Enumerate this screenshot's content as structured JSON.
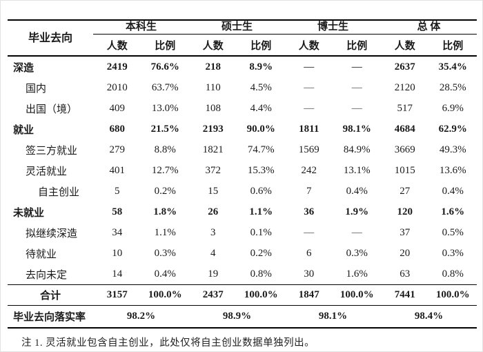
{
  "table": {
    "corner": "毕业去向",
    "groups": [
      {
        "label": "本科生"
      },
      {
        "label": "硕士生"
      },
      {
        "label": "博士生"
      },
      {
        "label": "总  体"
      }
    ],
    "sub": {
      "count": "人数",
      "ratio": "比例"
    },
    "rows": [
      {
        "label": "深造",
        "cells": [
          "2419",
          "76.6%",
          "218",
          "8.9%",
          "—",
          "—",
          "2637",
          "35.4%"
        ]
      },
      {
        "label": "国内",
        "cells": [
          "2010",
          "63.7%",
          "110",
          "4.5%",
          "—",
          "—",
          "2120",
          "28.5%"
        ]
      },
      {
        "label": "出国（境）",
        "cells": [
          "409",
          "13.0%",
          "108",
          "4.4%",
          "—",
          "—",
          "517",
          "6.9%"
        ]
      },
      {
        "label": "就业",
        "cells": [
          "680",
          "21.5%",
          "2193",
          "90.0%",
          "1811",
          "98.1%",
          "4684",
          "62.9%"
        ]
      },
      {
        "label": "签三方就业",
        "cells": [
          "279",
          "8.8%",
          "1821",
          "74.7%",
          "1569",
          "84.9%",
          "3669",
          "49.3%"
        ]
      },
      {
        "label": "灵活就业",
        "cells": [
          "401",
          "12.7%",
          "372",
          "15.3%",
          "242",
          "13.1%",
          "1015",
          "13.6%"
        ]
      },
      {
        "label": "自主创业",
        "cells": [
          "5",
          "0.2%",
          "15",
          "0.6%",
          "7",
          "0.4%",
          "27",
          "0.4%"
        ]
      },
      {
        "label": "未就业",
        "cells": [
          "58",
          "1.8%",
          "26",
          "1.1%",
          "36",
          "1.9%",
          "120",
          "1.6%"
        ]
      },
      {
        "label": "拟继续深造",
        "cells": [
          "34",
          "1.1%",
          "3",
          "0.1%",
          "—",
          "—",
          "37",
          "0.5%"
        ]
      },
      {
        "label": "待就业",
        "cells": [
          "10",
          "0.3%",
          "4",
          "0.2%",
          "6",
          "0.3%",
          "20",
          "0.3%"
        ]
      },
      {
        "label": "去向未定",
        "cells": [
          "14",
          "0.4%",
          "19",
          "0.8%",
          "30",
          "1.6%",
          "63",
          "0.8%"
        ]
      }
    ],
    "total": {
      "label": "合计",
      "cells": [
        "3157",
        "100.0%",
        "2437",
        "100.0%",
        "1847",
        "100.0%",
        "7441",
        "100.0%"
      ]
    },
    "rate": {
      "label": "毕业去向落实率",
      "values": [
        "98.2%",
        "98.9%",
        "98.1%",
        "98.4%"
      ]
    }
  },
  "note": "注 1. 灵活就业包含自主创业，此处仅将自主创业数据单独列出。",
  "colors": {
    "line": "#000000",
    "text": "#1a1a1a",
    "dash": "#4a4a4a"
  }
}
